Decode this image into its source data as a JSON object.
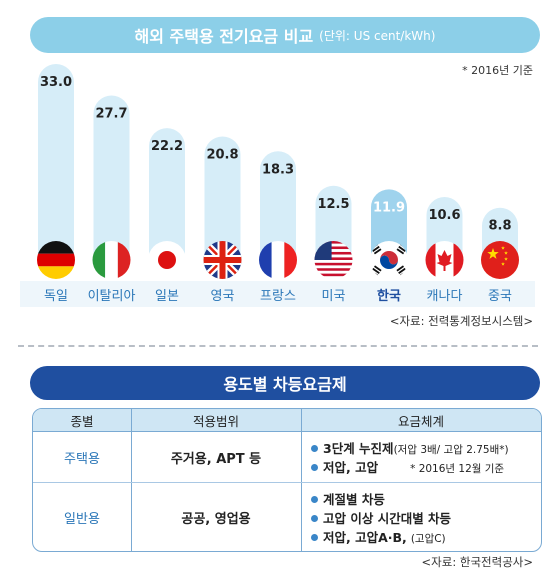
{
  "chart_data": {
    "type": "bar",
    "title": "해외 주택용 전기요금 비교",
    "subtitle": "(단위: US cent/kWh)",
    "note": "* 2016년 기준",
    "categories": [
      "독일",
      "이탈리아",
      "일본",
      "영국",
      "프랑스",
      "미국",
      "한국",
      "캐나다",
      "중국"
    ],
    "values": [
      33.0,
      27.7,
      22.2,
      20.8,
      18.3,
      12.5,
      11.9,
      10.6,
      8.8
    ],
    "value_labels": [
      "33.0",
      "27.7",
      "22.2",
      "20.8",
      "18.3",
      "12.5",
      "11.9",
      "10.6",
      "8.8"
    ],
    "highlight": "한국",
    "ylim": [
      0,
      33
    ],
    "grid": false,
    "source": "<자료: 전력통계정보시스템>"
  },
  "flag_icons": [
    "germany-flag",
    "italy-flag",
    "japan-flag",
    "uk-flag",
    "france-flag",
    "usa-flag",
    "korea-flag",
    "canada-flag",
    "china-flag"
  ],
  "colors": {
    "bar": "#d6edf8",
    "highlight_bar": "#9fd3ed",
    "title_bar": "#8ccfe8",
    "table_title_bar": "#1f4fa0",
    "table_header": "#cfe6f4",
    "highlight_label": "#1f4fa0",
    "category_label": "#2b77b8"
  },
  "table": {
    "title": "용도별 차등요금제",
    "headers": [
      "종별",
      "적용범위",
      "요금체계"
    ],
    "rows": [
      {
        "type": "주택용",
        "scope": "주거용, APT 등",
        "items": [
          {
            "strong": "3단계 누진제",
            "detail": "(저압 3배/ 고압 2.75배*)"
          },
          {
            "strong": "저압, 고압",
            "note": "* 2016년 12월 기준"
          }
        ]
      },
      {
        "type": "일반용",
        "scope": "공공, 영업용",
        "items": [
          {
            "strong": "계절별 차등"
          },
          {
            "strong": "고압 이상 시간대별 차등"
          },
          {
            "strong": "저압, 고압A·B,",
            "detail": "(고압C)"
          }
        ]
      }
    ],
    "source": "<자료: 한국전력공사>"
  }
}
